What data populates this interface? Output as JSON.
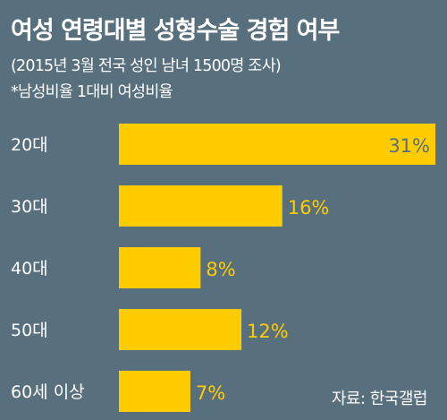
{
  "title": "여성 연령대별 성형수술 경험 여부",
  "subtitle": "(2015년 3월 전국 성인 남녀 1500명 조사)",
  "note": "*남성비율 1대비 여성비율",
  "source": "자료: 한국갤럽",
  "colors": {
    "background": "#586f7e",
    "bar": "#ffcc00",
    "text": "#ffffff",
    "value_inside": "#586f7e"
  },
  "chart_data": {
    "type": "bar",
    "orientation": "horizontal",
    "title": "여성 연령대별 성형수술 경험 여부",
    "subtitle": "(2015년 3월 전국 성인 남녀 1500명 조사)",
    "categories": [
      "20대",
      "30대",
      "40대",
      "50대",
      "60세 이상"
    ],
    "values": [
      31,
      16,
      8,
      12,
      7
    ],
    "value_labels": [
      "31%",
      "16%",
      "8%",
      "12%",
      "7%"
    ],
    "unit": "%",
    "xlim": [
      0,
      31
    ],
    "grid": false,
    "legend": "none"
  }
}
